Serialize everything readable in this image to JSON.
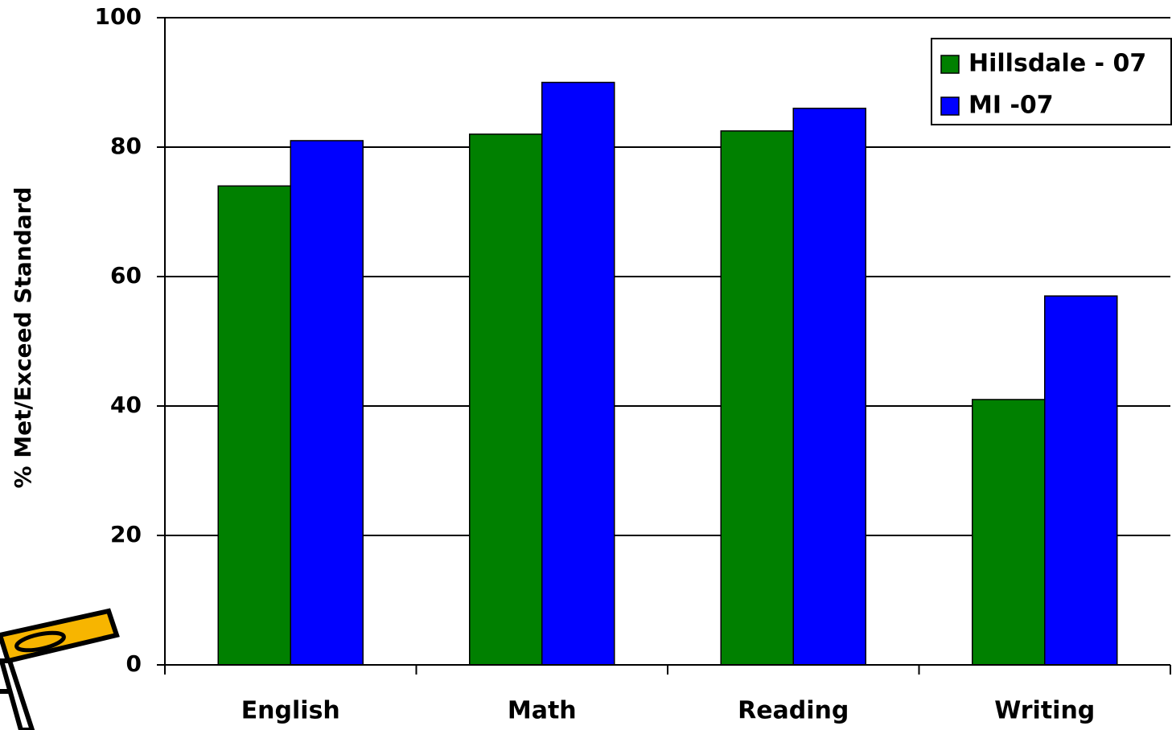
{
  "chart_data": {
    "type": "bar",
    "y_label": "% Met/Exceed Standard",
    "categories": [
      "English",
      "Math",
      "Reading",
      "Writing"
    ],
    "series": [
      {
        "name": "Hillsdale - 07",
        "color": "#008000",
        "values": [
          74,
          82,
          82.5,
          41
        ]
      },
      {
        "name": "MI -07",
        "color": "#0000ff",
        "values": [
          81,
          90,
          86,
          57
        ]
      }
    ],
    "ylim": [
      0,
      100
    ],
    "yticks": [
      0,
      20,
      40,
      60,
      80,
      100
    ],
    "grid": true,
    "legend": "upper right"
  }
}
